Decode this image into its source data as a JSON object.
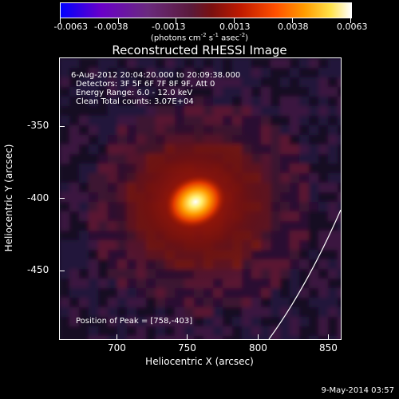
{
  "colorbar": {
    "ticks": [
      "-0.0063",
      "-0.0038",
      "-0.0013",
      "0.0013",
      "0.0038",
      "0.0063"
    ],
    "units_prefix": "(photons cm",
    "units_sup1": "-2",
    "units_mid1": " s",
    "units_sup2": "-1",
    "units_mid2": " asec",
    "units_sup3": "-2",
    "units_suffix": ")",
    "colors": [
      "#0000ff",
      "#6a00c8",
      "#5a1a3a",
      "#c01a00",
      "#ff9c00",
      "#ffffff"
    ]
  },
  "title": "Reconstructed RHESSI Image",
  "info": {
    "time_range": "6-Aug-2012 20:04:20.000 to 20:09:38.000",
    "detectors": "Detectors: 3F 5F 6F 7F 8F 9F, Att 0",
    "energy": "Energy Range: 6.0 - 12.0 keV",
    "clean": "Clean    Total counts: 3.07E+04"
  },
  "peak": "Position of Peak = [758,-403]",
  "axes": {
    "xlabel": "Heliocentric X (arcsec)",
    "ylabel": "Heliocentric Y (arcsec)",
    "xticks": [
      "700",
      "750",
      "800",
      "850"
    ],
    "yticks": [
      "-350",
      "-400",
      "-450"
    ]
  },
  "peak_position": {
    "x": 758,
    "y": -403
  },
  "limb_curve_points_arcsec": [
    [
      805,
      -500
    ],
    [
      830,
      -460
    ],
    [
      855,
      -415
    ]
  ],
  "timestamp": "9-May-2014 03:57"
}
